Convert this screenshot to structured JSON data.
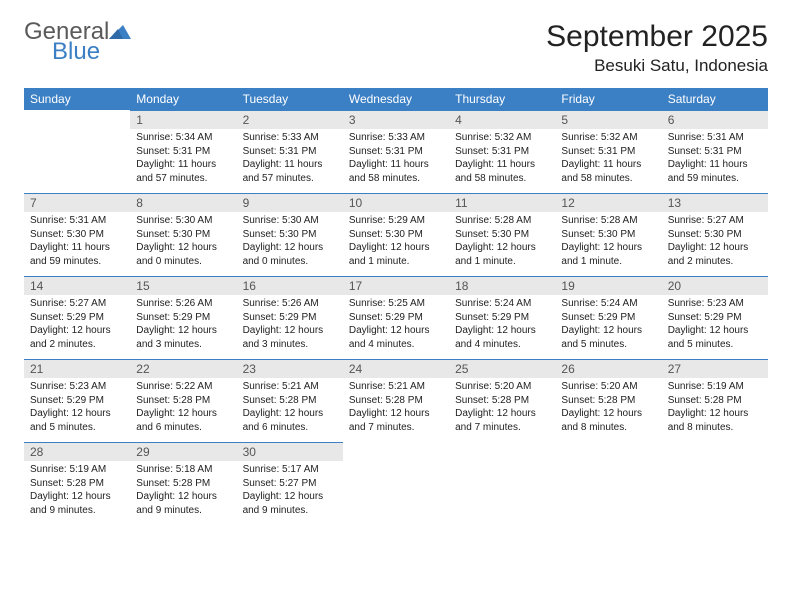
{
  "brand": {
    "name1": "General",
    "name2": "Blue"
  },
  "title": "September 2025",
  "location": "Besuki Satu, Indonesia",
  "colors": {
    "header_bg": "#3b7fc4",
    "header_text": "#ffffff",
    "daynum_bg": "#e8e8e8",
    "daynum_border": "#3b7fc4",
    "body_text": "#222222",
    "logo_gray": "#5a5a5a",
    "logo_blue": "#3b7fc4",
    "page_bg": "#ffffff"
  },
  "typography": {
    "month_title_fontsize": 30,
    "location_fontsize": 17,
    "dow_fontsize": 12,
    "daynum_fontsize": 12,
    "body_fontsize": 10,
    "font_family": "Arial"
  },
  "layout": {
    "columns": 7,
    "rows": 5,
    "cell_min_height": 56
  },
  "days_of_week": [
    "Sunday",
    "Monday",
    "Tuesday",
    "Wednesday",
    "Thursday",
    "Friday",
    "Saturday"
  ],
  "weeks": [
    [
      {
        "day": "",
        "sunrise": "",
        "sunset": "",
        "daylight": ""
      },
      {
        "day": "1",
        "sunrise": "Sunrise: 5:34 AM",
        "sunset": "Sunset: 5:31 PM",
        "daylight": "Daylight: 11 hours and 57 minutes."
      },
      {
        "day": "2",
        "sunrise": "Sunrise: 5:33 AM",
        "sunset": "Sunset: 5:31 PM",
        "daylight": "Daylight: 11 hours and 57 minutes."
      },
      {
        "day": "3",
        "sunrise": "Sunrise: 5:33 AM",
        "sunset": "Sunset: 5:31 PM",
        "daylight": "Daylight: 11 hours and 58 minutes."
      },
      {
        "day": "4",
        "sunrise": "Sunrise: 5:32 AM",
        "sunset": "Sunset: 5:31 PM",
        "daylight": "Daylight: 11 hours and 58 minutes."
      },
      {
        "day": "5",
        "sunrise": "Sunrise: 5:32 AM",
        "sunset": "Sunset: 5:31 PM",
        "daylight": "Daylight: 11 hours and 58 minutes."
      },
      {
        "day": "6",
        "sunrise": "Sunrise: 5:31 AM",
        "sunset": "Sunset: 5:31 PM",
        "daylight": "Daylight: 11 hours and 59 minutes."
      }
    ],
    [
      {
        "day": "7",
        "sunrise": "Sunrise: 5:31 AM",
        "sunset": "Sunset: 5:30 PM",
        "daylight": "Daylight: 11 hours and 59 minutes."
      },
      {
        "day": "8",
        "sunrise": "Sunrise: 5:30 AM",
        "sunset": "Sunset: 5:30 PM",
        "daylight": "Daylight: 12 hours and 0 minutes."
      },
      {
        "day": "9",
        "sunrise": "Sunrise: 5:30 AM",
        "sunset": "Sunset: 5:30 PM",
        "daylight": "Daylight: 12 hours and 0 minutes."
      },
      {
        "day": "10",
        "sunrise": "Sunrise: 5:29 AM",
        "sunset": "Sunset: 5:30 PM",
        "daylight": "Daylight: 12 hours and 1 minute."
      },
      {
        "day": "11",
        "sunrise": "Sunrise: 5:28 AM",
        "sunset": "Sunset: 5:30 PM",
        "daylight": "Daylight: 12 hours and 1 minute."
      },
      {
        "day": "12",
        "sunrise": "Sunrise: 5:28 AM",
        "sunset": "Sunset: 5:30 PM",
        "daylight": "Daylight: 12 hours and 1 minute."
      },
      {
        "day": "13",
        "sunrise": "Sunrise: 5:27 AM",
        "sunset": "Sunset: 5:30 PM",
        "daylight": "Daylight: 12 hours and 2 minutes."
      }
    ],
    [
      {
        "day": "14",
        "sunrise": "Sunrise: 5:27 AM",
        "sunset": "Sunset: 5:29 PM",
        "daylight": "Daylight: 12 hours and 2 minutes."
      },
      {
        "day": "15",
        "sunrise": "Sunrise: 5:26 AM",
        "sunset": "Sunset: 5:29 PM",
        "daylight": "Daylight: 12 hours and 3 minutes."
      },
      {
        "day": "16",
        "sunrise": "Sunrise: 5:26 AM",
        "sunset": "Sunset: 5:29 PM",
        "daylight": "Daylight: 12 hours and 3 minutes."
      },
      {
        "day": "17",
        "sunrise": "Sunrise: 5:25 AM",
        "sunset": "Sunset: 5:29 PM",
        "daylight": "Daylight: 12 hours and 4 minutes."
      },
      {
        "day": "18",
        "sunrise": "Sunrise: 5:24 AM",
        "sunset": "Sunset: 5:29 PM",
        "daylight": "Daylight: 12 hours and 4 minutes."
      },
      {
        "day": "19",
        "sunrise": "Sunrise: 5:24 AM",
        "sunset": "Sunset: 5:29 PM",
        "daylight": "Daylight: 12 hours and 5 minutes."
      },
      {
        "day": "20",
        "sunrise": "Sunrise: 5:23 AM",
        "sunset": "Sunset: 5:29 PM",
        "daylight": "Daylight: 12 hours and 5 minutes."
      }
    ],
    [
      {
        "day": "21",
        "sunrise": "Sunrise: 5:23 AM",
        "sunset": "Sunset: 5:29 PM",
        "daylight": "Daylight: 12 hours and 5 minutes."
      },
      {
        "day": "22",
        "sunrise": "Sunrise: 5:22 AM",
        "sunset": "Sunset: 5:28 PM",
        "daylight": "Daylight: 12 hours and 6 minutes."
      },
      {
        "day": "23",
        "sunrise": "Sunrise: 5:21 AM",
        "sunset": "Sunset: 5:28 PM",
        "daylight": "Daylight: 12 hours and 6 minutes."
      },
      {
        "day": "24",
        "sunrise": "Sunrise: 5:21 AM",
        "sunset": "Sunset: 5:28 PM",
        "daylight": "Daylight: 12 hours and 7 minutes."
      },
      {
        "day": "25",
        "sunrise": "Sunrise: 5:20 AM",
        "sunset": "Sunset: 5:28 PM",
        "daylight": "Daylight: 12 hours and 7 minutes."
      },
      {
        "day": "26",
        "sunrise": "Sunrise: 5:20 AM",
        "sunset": "Sunset: 5:28 PM",
        "daylight": "Daylight: 12 hours and 8 minutes."
      },
      {
        "day": "27",
        "sunrise": "Sunrise: 5:19 AM",
        "sunset": "Sunset: 5:28 PM",
        "daylight": "Daylight: 12 hours and 8 minutes."
      }
    ],
    [
      {
        "day": "28",
        "sunrise": "Sunrise: 5:19 AM",
        "sunset": "Sunset: 5:28 PM",
        "daylight": "Daylight: 12 hours and 9 minutes."
      },
      {
        "day": "29",
        "sunrise": "Sunrise: 5:18 AM",
        "sunset": "Sunset: 5:28 PM",
        "daylight": "Daylight: 12 hours and 9 minutes."
      },
      {
        "day": "30",
        "sunrise": "Sunrise: 5:17 AM",
        "sunset": "Sunset: 5:27 PM",
        "daylight": "Daylight: 12 hours and 9 minutes."
      },
      {
        "day": "",
        "sunrise": "",
        "sunset": "",
        "daylight": ""
      },
      {
        "day": "",
        "sunrise": "",
        "sunset": "",
        "daylight": ""
      },
      {
        "day": "",
        "sunrise": "",
        "sunset": "",
        "daylight": ""
      },
      {
        "day": "",
        "sunrise": "",
        "sunset": "",
        "daylight": ""
      }
    ]
  ]
}
